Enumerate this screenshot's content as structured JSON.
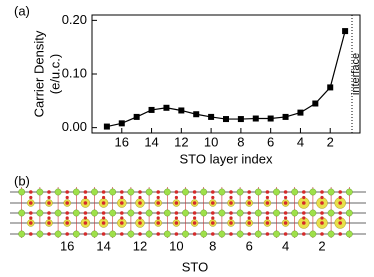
{
  "chart_data": {
    "type": "line",
    "label": "(a)",
    "ylabel": [
      "Carrier Density",
      "(e/u.c.)"
    ],
    "xlabel": "STO layer index",
    "annotation": "interface",
    "x": [
      17,
      16,
      15,
      14,
      13,
      12,
      11,
      10,
      9,
      8,
      7,
      6,
      5,
      4,
      3,
      2,
      1
    ],
    "values": [
      0.002,
      0.008,
      0.02,
      0.033,
      0.037,
      0.032,
      0.025,
      0.02,
      0.016,
      0.016,
      0.017,
      0.017,
      0.02,
      0.028,
      0.045,
      0.075,
      0.18
    ],
    "color": "#000000",
    "xlim": [
      18,
      0
    ],
    "xticks": [
      16,
      14,
      12,
      10,
      8,
      6,
      4,
      2
    ],
    "ylim": [
      -0.01,
      0.21
    ],
    "yticks": [
      {
        "value": 0,
        "label": "0.00"
      },
      {
        "value": 0.1,
        "label": "0.10"
      },
      {
        "value": 0.2,
        "label": "0.20"
      }
    ]
  },
  "structure": {
    "label": "(b)",
    "xticks": [
      16,
      14,
      12,
      10,
      8,
      6,
      4,
      2
    ],
    "xlabel": "STO"
  }
}
